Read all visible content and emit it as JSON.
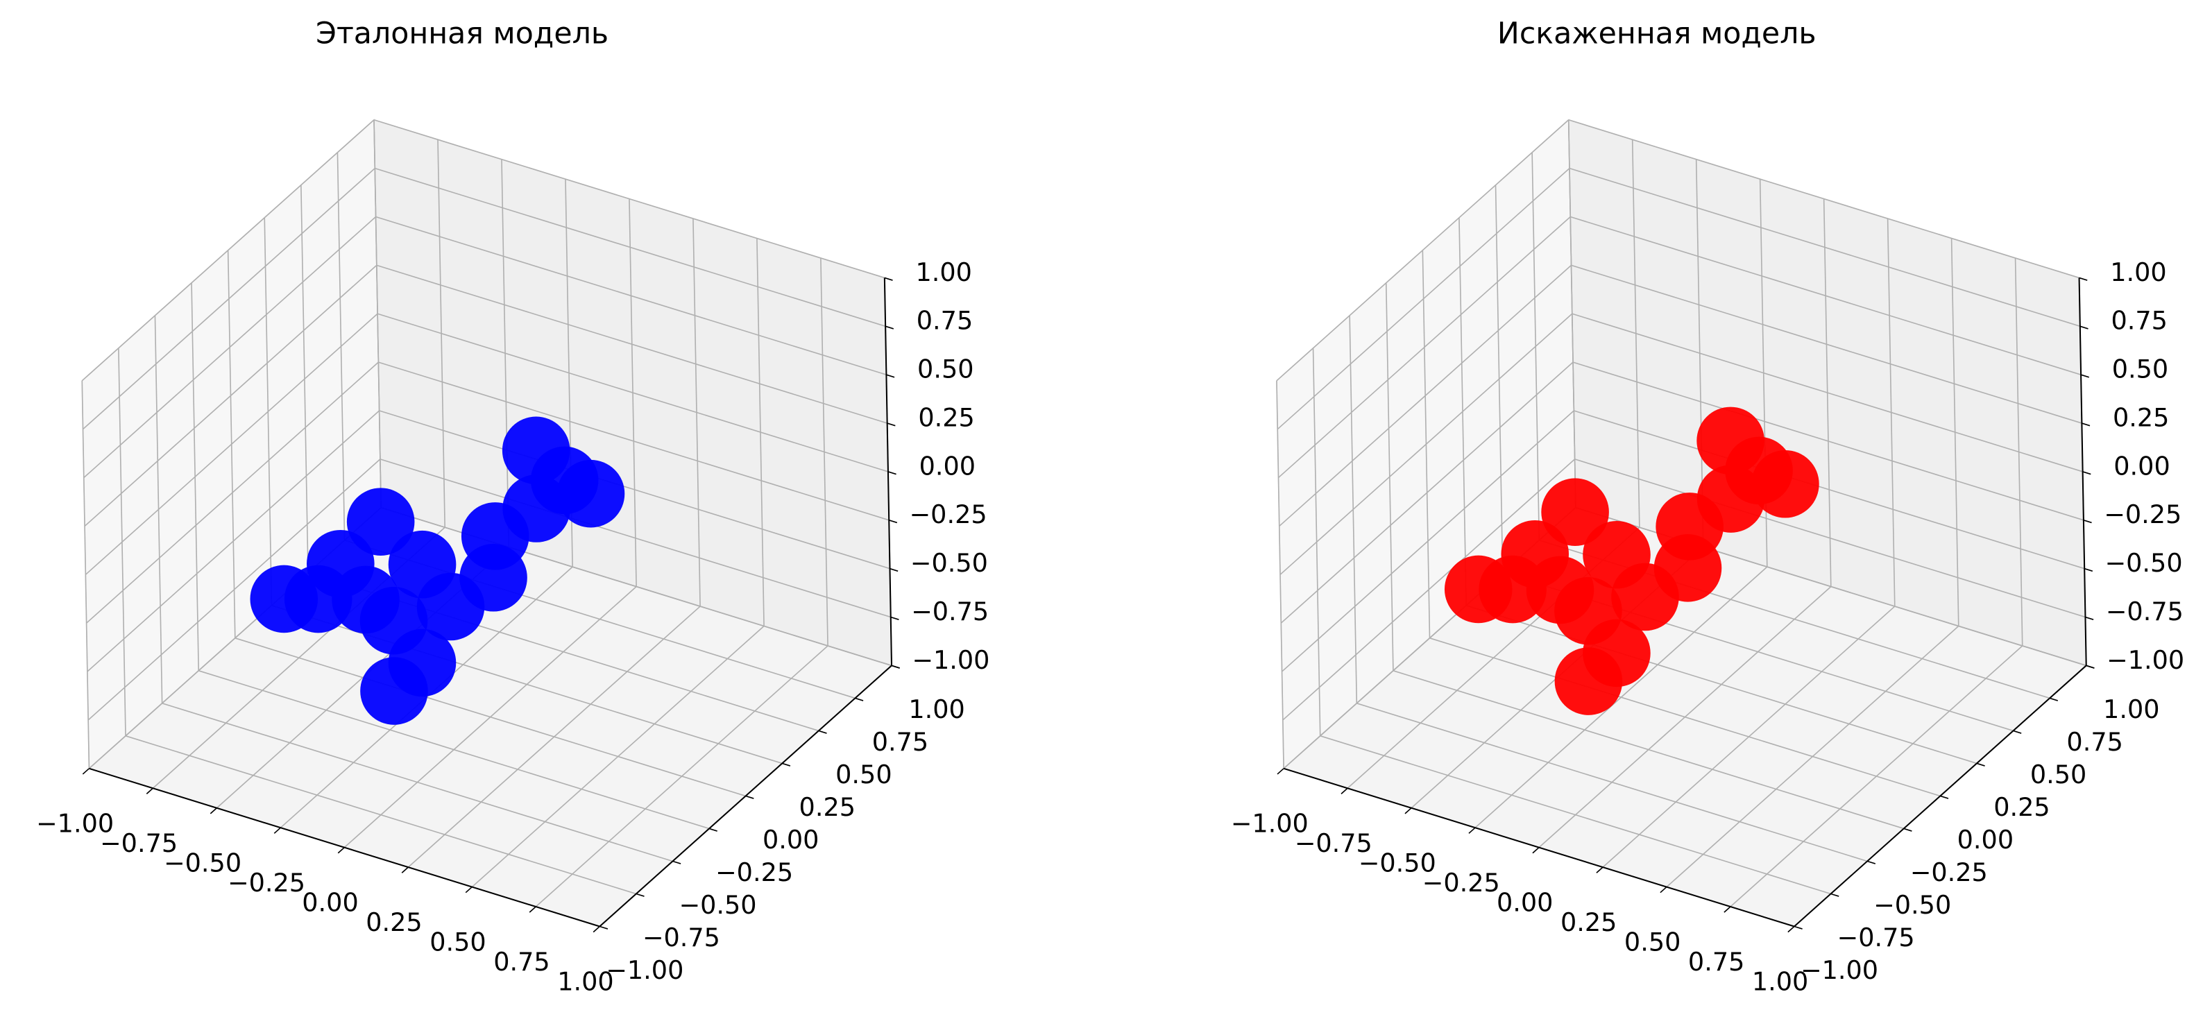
{
  "chart_data": [
    {
      "type": "scatter3d",
      "title": "Эталонная модель",
      "series": [
        {
          "color": "#0000ff",
          "x": [
            -0.6,
            -0.5,
            -0.36,
            -0.55,
            -0.57,
            -0.31,
            -0.21,
            -0.09,
            -0.19,
            -0.06,
            -0.16,
            -0.35,
            -0.17,
            -0.05,
            0.01,
            0.02
          ],
          "y": [
            -0.35,
            -0.29,
            -0.21,
            -0.05,
            0.26,
            0.09,
            -0.28,
            -0.1,
            0.38,
            0.14,
            0.61,
            0.94,
            0.82,
            0.79,
            -0.47,
            -0.68
          ],
          "z": [
            -0.4,
            -0.4,
            -0.4,
            -0.4,
            -0.4,
            -0.4,
            -0.4,
            -0.4,
            -0.4,
            -0.4,
            -0.4,
            -0.4,
            -0.4,
            -0.4,
            -0.4,
            -0.4
          ]
        }
      ],
      "xlim": [
        -1,
        1
      ],
      "ylim": [
        -1,
        1
      ],
      "zlim": [
        -1,
        1
      ],
      "xticks": [
        {
          "value": -1,
          "label": "−1.00"
        },
        {
          "value": -0.75,
          "label": "−0.75"
        },
        {
          "value": -0.5,
          "label": "−0.50"
        },
        {
          "value": -0.25,
          "label": "−0.25"
        },
        {
          "value": 0,
          "label": "0.00"
        },
        {
          "value": 0.25,
          "label": "0.25"
        },
        {
          "value": 0.5,
          "label": "0.50"
        },
        {
          "value": 0.75,
          "label": "0.75"
        },
        {
          "value": 1,
          "label": "1.00"
        }
      ],
      "yticks": [
        {
          "value": -1,
          "label": "−1.00"
        },
        {
          "value": -0.75,
          "label": "−0.75"
        },
        {
          "value": -0.5,
          "label": "−0.50"
        },
        {
          "value": -0.25,
          "label": "−0.25"
        },
        {
          "value": 0,
          "label": "0.00"
        },
        {
          "value": 0.25,
          "label": "0.25"
        },
        {
          "value": 0.5,
          "label": "0.50"
        },
        {
          "value": 0.75,
          "label": "0.75"
        },
        {
          "value": 1,
          "label": "1.00"
        }
      ],
      "zticks": [
        {
          "value": -1,
          "label": "−1.00"
        },
        {
          "value": -0.75,
          "label": "−0.75"
        },
        {
          "value": -0.5,
          "label": "−0.50"
        },
        {
          "value": -0.25,
          "label": "−0.25"
        },
        {
          "value": 0,
          "label": "0.00"
        },
        {
          "value": 0.25,
          "label": "0.25"
        },
        {
          "value": 0.5,
          "label": "0.50"
        },
        {
          "value": 0.75,
          "label": "0.75"
        },
        {
          "value": 1,
          "label": "1.00"
        }
      ],
      "grid": true
    },
    {
      "type": "scatter3d",
      "title": "Искаженная модель",
      "series": [
        {
          "color": "#ff0000",
          "x": [
            -0.6,
            -0.5,
            -0.36,
            -0.55,
            -0.57,
            -0.31,
            -0.21,
            -0.09,
            -0.19,
            -0.06,
            -0.16,
            -0.35,
            -0.17,
            -0.05,
            0.01,
            0.02
          ],
          "y": [
            -0.35,
            -0.29,
            -0.21,
            -0.05,
            0.26,
            0.09,
            -0.28,
            -0.1,
            0.38,
            0.14,
            0.61,
            0.94,
            0.82,
            0.79,
            -0.47,
            -0.68
          ],
          "z": [
            -0.35,
            -0.35,
            -0.35,
            -0.35,
            -0.35,
            -0.35,
            -0.35,
            -0.35,
            -0.35,
            -0.35,
            -0.35,
            -0.35,
            -0.35,
            -0.35,
            -0.35,
            -0.35
          ]
        }
      ],
      "xlim": [
        -1,
        1
      ],
      "ylim": [
        -1,
        1
      ],
      "zlim": [
        -1,
        1
      ],
      "xticks": [
        {
          "value": -1,
          "label": "−1.00"
        },
        {
          "value": -0.75,
          "label": "−0.75"
        },
        {
          "value": -0.5,
          "label": "−0.50"
        },
        {
          "value": -0.25,
          "label": "−0.25"
        },
        {
          "value": 0,
          "label": "0.00"
        },
        {
          "value": 0.25,
          "label": "0.25"
        },
        {
          "value": 0.5,
          "label": "0.50"
        },
        {
          "value": 0.75,
          "label": "0.75"
        },
        {
          "value": 1,
          "label": "1.00"
        }
      ],
      "yticks": [
        {
          "value": -1,
          "label": "−1.00"
        },
        {
          "value": -0.75,
          "label": "−0.75"
        },
        {
          "value": -0.5,
          "label": "−0.50"
        },
        {
          "value": -0.25,
          "label": "−0.25"
        },
        {
          "value": 0,
          "label": "0.00"
        },
        {
          "value": 0.25,
          "label": "0.25"
        },
        {
          "value": 0.5,
          "label": "0.50"
        },
        {
          "value": 0.75,
          "label": "0.75"
        },
        {
          "value": 1,
          "label": "1.00"
        }
      ],
      "zticks": [
        {
          "value": -1,
          "label": "−1.00"
        },
        {
          "value": -0.75,
          "label": "−0.75"
        },
        {
          "value": -0.5,
          "label": "−0.50"
        },
        {
          "value": -0.25,
          "label": "−0.25"
        },
        {
          "value": 0,
          "label": "0.00"
        },
        {
          "value": 0.25,
          "label": "0.25"
        },
        {
          "value": 0.5,
          "label": "0.50"
        },
        {
          "value": 0.75,
          "label": "0.75"
        },
        {
          "value": 1,
          "label": "1.00"
        }
      ],
      "grid": true
    }
  ]
}
